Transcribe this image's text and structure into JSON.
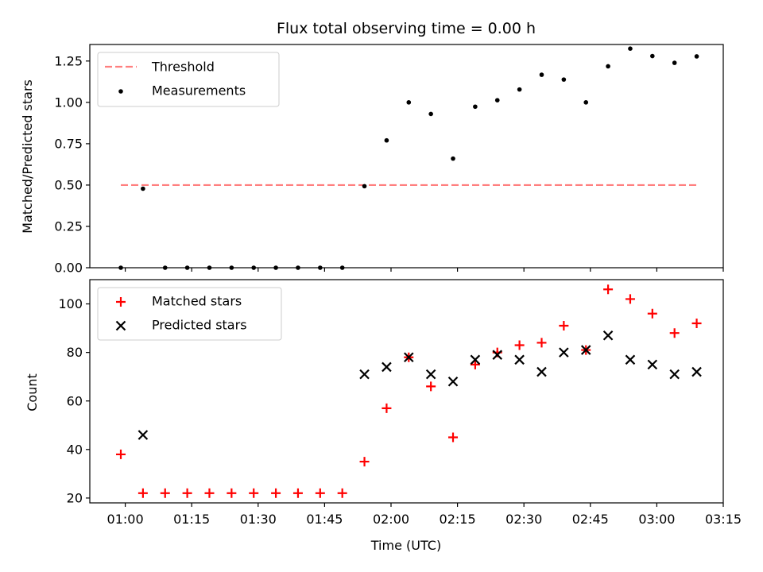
{
  "chart_data": [
    {
      "type": "line+scatter",
      "panel": "top",
      "title": "Flux total observing time = 0.00 h",
      "xlabel": "",
      "ylabel": "Matched/Predicted stars",
      "ylim": [
        0.0,
        1.35
      ],
      "yticks": [
        "0.00",
        "0.25",
        "0.50",
        "0.75",
        "1.00",
        "1.25"
      ],
      "legend_position": "top-left",
      "series": [
        {
          "name": "Threshold",
          "kind": "dashed-line",
          "color": "#ff7f7f",
          "x": [
            "00:59",
            "03:09"
          ],
          "y": [
            0.5,
            0.5
          ]
        },
        {
          "name": "Measurements",
          "kind": "scatter-dot",
          "color": "#000000",
          "x": [
            "00:59",
            "01:04",
            "01:09",
            "01:14",
            "01:19",
            "01:24",
            "01:29",
            "01:34",
            "01:39",
            "01:44",
            "01:49",
            "01:54",
            "01:59",
            "02:04",
            "02:09",
            "02:14",
            "02:19",
            "02:24",
            "02:29",
            "02:34",
            "02:39",
            "02:44",
            "02:49",
            "02:54",
            "02:59",
            "03:04",
            "03:09"
          ],
          "y": [
            0.0,
            0.478,
            0.0,
            0.0,
            0.0,
            0.0,
            0.0,
            0.0,
            0.0,
            0.0,
            0.0,
            0.493,
            0.77,
            1.0,
            0.93,
            0.66,
            0.974,
            1.013,
            1.078,
            1.167,
            1.138,
            1.0,
            1.218,
            1.325,
            1.28,
            1.239,
            1.278
          ]
        }
      ]
    },
    {
      "type": "scatter",
      "panel": "bottom",
      "xlabel": "Time (UTC)",
      "ylabel": "Count",
      "ylim": [
        18,
        110
      ],
      "yticks": [
        "20",
        "40",
        "60",
        "80",
        "100"
      ],
      "xrange": [
        "00:52",
        "03:15"
      ],
      "xticks": [
        "01:00",
        "01:15",
        "01:30",
        "01:45",
        "02:00",
        "02:15",
        "02:30",
        "02:45",
        "03:00",
        "03:15"
      ],
      "legend_position": "top-left",
      "series": [
        {
          "name": "Matched stars",
          "marker": "plus",
          "color": "#ff0000",
          "x": [
            "00:59",
            "01:04",
            "01:09",
            "01:14",
            "01:19",
            "01:24",
            "01:29",
            "01:34",
            "01:39",
            "01:44",
            "01:49",
            "01:54",
            "01:59",
            "02:04",
            "02:09",
            "02:14",
            "02:19",
            "02:24",
            "02:29",
            "02:34",
            "02:39",
            "02:44",
            "02:49",
            "02:54",
            "02:59",
            "03:04",
            "03:09"
          ],
          "y": [
            38,
            22,
            22,
            22,
            22,
            22,
            22,
            22,
            22,
            22,
            22,
            35,
            57,
            78,
            66,
            45,
            75,
            80,
            83,
            84,
            91,
            81,
            106,
            102,
            96,
            88,
            92
          ]
        },
        {
          "name": "Predicted stars",
          "marker": "x",
          "color": "#000000",
          "x": [
            "01:04",
            "01:54",
            "01:59",
            "02:04",
            "02:09",
            "02:14",
            "02:19",
            "02:24",
            "02:29",
            "02:34",
            "02:39",
            "02:44",
            "02:49",
            "02:54",
            "02:59",
            "03:04",
            "03:09"
          ],
          "y": [
            46,
            71,
            74,
            78,
            71,
            68,
            77,
            79,
            77,
            72,
            80,
            81,
            87,
            77,
            75,
            71,
            72
          ]
        }
      ]
    }
  ]
}
